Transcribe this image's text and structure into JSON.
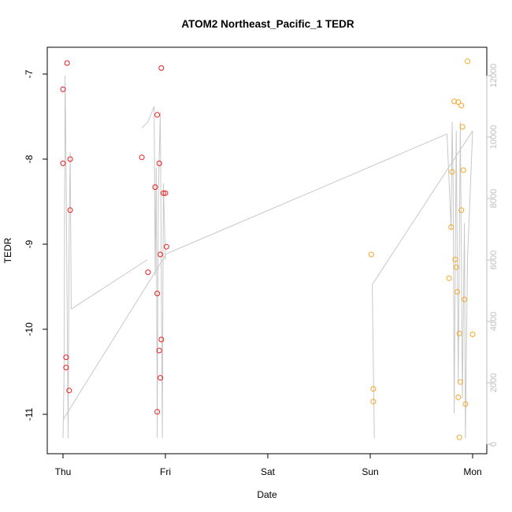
{
  "chart_data": {
    "type": "scatter",
    "title": "ATOM2 Northeast_Pacific_1 TEDR",
    "xlabel": "Date",
    "ylabel": "TEDR",
    "x_ticks": [
      "Thu",
      "Fri",
      "Sat",
      "Sun",
      "Mon"
    ],
    "y_ticks": [
      "-7",
      "-8",
      "-9",
      "-10",
      "-11"
    ],
    "y2_ticks": [
      "0",
      "2000",
      "4000",
      "6000",
      "8000",
      "10000",
      "12000"
    ],
    "xlim_days": [
      -0.15,
      4.08
    ],
    "ylim": [
      -11.4,
      -6.6
    ],
    "y2lim": [
      -300,
      12500
    ],
    "grid": false,
    "colors": {
      "series_red": "#ee1c1c",
      "series_orange": "#f5a623",
      "altitude_line": "#c8c8c8",
      "axis": "#000000",
      "right_axis": "#bdbdbd"
    },
    "series": [
      {
        "color": "#ee1c1c",
        "points": [
          [
            0.0,
            -7.18
          ],
          [
            0.04,
            -6.87
          ],
          [
            0.07,
            -8.0
          ],
          [
            0.0,
            -8.05
          ],
          [
            0.07,
            -8.6
          ],
          [
            0.03,
            -10.33
          ],
          [
            0.03,
            -10.45
          ],
          [
            0.06,
            -10.72
          ],
          [
            0.77,
            -7.98
          ],
          [
            0.83,
            -9.33
          ],
          [
            0.9,
            -8.33
          ],
          [
            0.92,
            -7.48
          ],
          [
            0.94,
            -8.05
          ],
          [
            0.96,
            -6.93
          ],
          [
            0.98,
            -8.4
          ],
          [
            1.0,
            -8.4
          ],
          [
            0.95,
            -9.12
          ],
          [
            1.01,
            -9.03
          ],
          [
            0.92,
            -9.58
          ],
          [
            0.94,
            -10.25
          ],
          [
            0.96,
            -10.12
          ],
          [
            0.95,
            -10.57
          ],
          [
            0.92,
            -10.97
          ]
        ]
      },
      {
        "color": "#f5a623",
        "points": [
          [
            3.01,
            -9.12
          ],
          [
            3.03,
            -10.7
          ],
          [
            3.03,
            -10.85
          ],
          [
            3.77,
            -9.4
          ],
          [
            3.79,
            -8.8
          ],
          [
            3.8,
            -8.15
          ],
          [
            3.82,
            -7.32
          ],
          [
            3.83,
            -9.18
          ],
          [
            3.84,
            -9.27
          ],
          [
            3.85,
            -9.56
          ],
          [
            3.86,
            -7.33
          ],
          [
            3.87,
            -10.05
          ],
          [
            3.88,
            -10.62
          ],
          [
            3.89,
            -7.37
          ],
          [
            3.9,
            -7.62
          ],
          [
            3.91,
            -8.13
          ],
          [
            3.92,
            -9.65
          ],
          [
            3.93,
            -10.88
          ],
          [
            3.95,
            -6.85
          ],
          [
            3.86,
            -10.8
          ],
          [
            3.89,
            -8.6
          ],
          [
            3.87,
            -11.27
          ],
          [
            4.0,
            -10.06
          ]
        ]
      }
    ],
    "altitude_series": {
      "color": "#c8c8c8",
      "axis": "right",
      "points": [
        [
          0.0,
          200
        ],
        [
          0.01,
          2200
        ],
        [
          0.02,
          12000
        ],
        [
          0.03,
          9000
        ],
        [
          0.05,
          200
        ],
        [
          0.06,
          7000
        ],
        [
          0.07,
          9500
        ],
        [
          0.08,
          4400
        ],
        [
          0.1,
          4450
        ],
        [
          0.77,
          10300
        ],
        [
          0.83,
          10500
        ],
        [
          0.89,
          11000
        ],
        [
          0.9,
          5500
        ],
        [
          0.91,
          9000
        ],
        [
          0.92,
          200
        ],
        [
          0.93,
          8000
        ],
        [
          0.95,
          10800
        ],
        [
          0.97,
          200
        ],
        [
          0.98,
          8500
        ],
        [
          1.0,
          6000
        ],
        [
          0.0,
          800
        ],
        [
          1.01,
          6200
        ],
        [
          3.02,
          5200
        ],
        [
          3.04,
          200
        ],
        [
          3.75,
          10100
        ],
        [
          3.79,
          7000
        ],
        [
          3.8,
          10500
        ],
        [
          3.81,
          8500
        ],
        [
          3.82,
          1000
        ],
        [
          3.84,
          10200
        ],
        [
          3.86,
          2000
        ],
        [
          3.88,
          10500
        ],
        [
          3.9,
          1500
        ],
        [
          3.92,
          7200
        ],
        [
          3.93,
          200
        ],
        [
          3.95,
          6000
        ],
        [
          4.0,
          10200
        ],
        [
          3.02,
          5150
        ],
        [
          3.87,
          300
        ]
      ],
      "segments": [
        [
          [
            0.0,
            200
          ],
          [
            0.01,
            2200
          ],
          [
            0.02,
            12000
          ],
          [
            0.03,
            9000
          ],
          [
            0.05,
            200
          ],
          [
            0.06,
            7000
          ],
          [
            0.07,
            9500
          ],
          [
            0.08,
            4400
          ]
        ],
        [
          [
            0.08,
            4400
          ],
          [
            0.82,
            6000
          ]
        ],
        [
          [
            0.77,
            10300
          ],
          [
            0.83,
            10500
          ],
          [
            0.89,
            11000
          ],
          [
            0.9,
            5500
          ],
          [
            0.91,
            9000
          ],
          [
            0.92,
            200
          ],
          [
            0.93,
            8000
          ],
          [
            0.95,
            10800
          ],
          [
            0.97,
            200
          ],
          [
            0.98,
            8500
          ],
          [
            1.0,
            6000
          ]
        ],
        [
          [
            0.0,
            800
          ],
          [
            1.01,
            6200
          ]
        ],
        [
          [
            1.01,
            6200
          ],
          [
            3.75,
            10100
          ]
        ],
        [
          [
            3.02,
            5200
          ],
          [
            3.04,
            200
          ]
        ],
        [
          [
            3.02,
            5200
          ],
          [
            4.0,
            10200
          ]
        ],
        [
          [
            3.75,
            10100
          ],
          [
            3.79,
            7000
          ],
          [
            3.8,
            10500
          ],
          [
            3.81,
            8500
          ],
          [
            3.82,
            1000
          ],
          [
            3.84,
            10200
          ],
          [
            3.86,
            2000
          ],
          [
            3.88,
            10500
          ],
          [
            3.9,
            1500
          ],
          [
            3.92,
            7200
          ],
          [
            3.93,
            200
          ],
          [
            3.95,
            6000
          ],
          [
            4.0,
            10200
          ]
        ]
      ]
    }
  }
}
